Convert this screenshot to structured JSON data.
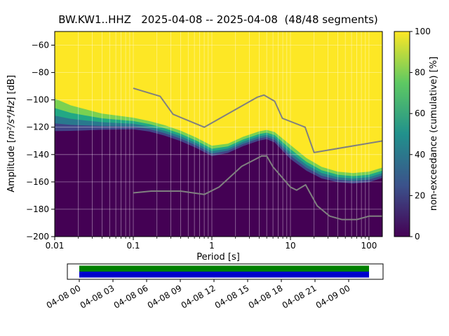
{
  "chart_data": {
    "type": "heatmap",
    "title": "BW.KW1..HHZ   2025-04-08 -- 2025-04-08  (48/48 segments)",
    "xlabel": "Period [s]",
    "ylabel": "Amplitude [m²/s⁴/Hz] [dB]",
    "ylabel_parts": [
      "Amplitude [",
      "m²/s⁴/Hz",
      "] [dB]"
    ],
    "x_scale": "log",
    "xlim": [
      0.01,
      148
    ],
    "ylim": [
      -200,
      -50
    ],
    "xticks": [
      0.01,
      0.1,
      1,
      10,
      100
    ],
    "xtick_labels": [
      "0.01",
      "0.1",
      "1",
      "10",
      "100"
    ],
    "yticks": [
      -60,
      -80,
      -100,
      -120,
      -140,
      -160,
      -180,
      -200
    ],
    "ytick_labels": [
      "−60",
      "−80",
      "−100",
      "−120",
      "−140",
      "−160",
      "−180",
      "−200"
    ],
    "grid": true,
    "colors": {
      "high": "#fde725",
      "low": "#440154",
      "noise_model_line": "#808080",
      "grid_line": "rgba(255,255,255,0.45)",
      "figure_background": "#ffffff"
    },
    "band_layers": [
      {
        "offset": 1.0,
        "color": "#7ad151"
      },
      {
        "offset": 0.5,
        "color": "#22a884"
      },
      {
        "offset": 0.1,
        "color": "#2a788e"
      },
      {
        "offset": -0.3,
        "color": "#414487"
      },
      {
        "offset": -0.7,
        "color": "#440154"
      }
    ],
    "psd_band": {
      "description": "PPSD distribution of power spectral density; median and half-width of the non-exceedance transition band, in dB, vs period in seconds",
      "periods": [
        0.01,
        0.016,
        0.025,
        0.04,
        0.063,
        0.1,
        0.16,
        0.25,
        0.4,
        0.63,
        1.0,
        1.6,
        2.5,
        4.0,
        5.0,
        6.3,
        10,
        16,
        25,
        40,
        63,
        100,
        148
      ],
      "median_db": [
        -113,
        -115,
        -116,
        -117,
        -117.5,
        -118,
        -120,
        -123,
        -127,
        -132,
        -138,
        -136,
        -131,
        -127,
        -126,
        -128,
        -139,
        -148,
        -154,
        -157,
        -158,
        -157,
        -154
      ],
      "halfwidth_db": [
        14,
        11,
        9,
        7,
        6,
        5,
        4.5,
        4.5,
        4.5,
        4.5,
        4.5,
        4,
        4,
        4,
        4,
        4.5,
        6,
        5.5,
        5,
        4.5,
        4.5,
        4.5,
        4.5
      ]
    },
    "noise_models": {
      "high": {
        "name": "Peterson New High Noise Model",
        "periods": [
          0.1,
          0.22,
          0.32,
          0.8,
          3.8,
          4.6,
          6.3,
          7.9,
          15.4,
          20,
          148
        ],
        "db": [
          -91.5,
          -97.4,
          -110.5,
          -120,
          -98,
          -96.5,
          -101,
          -113.5,
          -120,
          -138.5,
          -130
        ]
      },
      "low": {
        "name": "Peterson New Low Noise Model",
        "periods": [
          0.1,
          0.17,
          0.4,
          0.8,
          1.24,
          2.4,
          4.3,
          5,
          6,
          10,
          12,
          15.6,
          21.9,
          31.6,
          45,
          70,
          101,
          148
        ],
        "db": [
          -168,
          -166.7,
          -166.7,
          -169.2,
          -163.7,
          -148.6,
          -141.1,
          -141.1,
          -149,
          -163.8,
          -166,
          -162.1,
          -177.5,
          -185,
          -187.5,
          -187.5,
          -185,
          -185
        ]
      }
    },
    "colorbar": {
      "label": "non-exceedance (cumulative) [%]",
      "tick_values": [
        0,
        20,
        40,
        60,
        80,
        100
      ],
      "tick_labels": [
        "0",
        "20",
        "40",
        "60",
        "80",
        "100"
      ],
      "gradient": [
        "#440154",
        "#3b528b",
        "#21918c",
        "#5ec962",
        "#fde725"
      ]
    },
    "timeline": {
      "tick_labels": [
        "04-08 00",
        "04-08 03",
        "04-08 06",
        "04-08 09",
        "04-08 12",
        "04-08 15",
        "04-08 18",
        "04-08 21",
        "04-09 00"
      ],
      "bar_colors": {
        "top": "#008000",
        "bottom": "#0000cd"
      }
    }
  }
}
